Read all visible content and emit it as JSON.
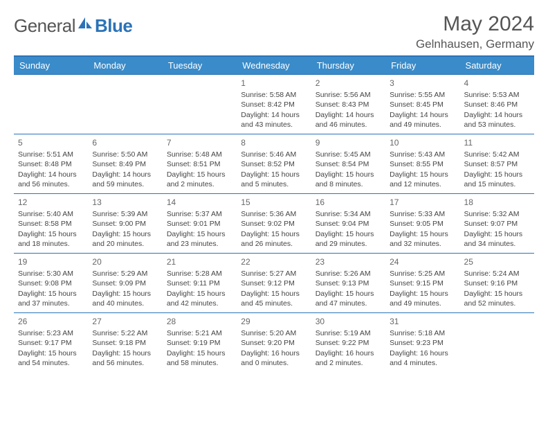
{
  "brand": {
    "left": "General",
    "right": "Blue"
  },
  "title": "May 2024",
  "location": "Gelnhausen, Germany",
  "colors": {
    "header_bg": "#3a8bc9",
    "header_text": "#ffffff",
    "rule": "#2b73b8",
    "body_text": "#444444",
    "title_text": "#555555",
    "background": "#ffffff"
  },
  "typography": {
    "title_fontsize": 30,
    "location_fontsize": 17,
    "dayhead_fontsize": 13,
    "cell_fontsize": 10.5,
    "logo_fontsize": 26
  },
  "day_headers": [
    "Sunday",
    "Monday",
    "Tuesday",
    "Wednesday",
    "Thursday",
    "Friday",
    "Saturday"
  ],
  "weeks": [
    [
      null,
      null,
      null,
      {
        "n": "1",
        "sunrise": "5:58 AM",
        "sunset": "8:42 PM",
        "daylight": "14 hours and 43 minutes."
      },
      {
        "n": "2",
        "sunrise": "5:56 AM",
        "sunset": "8:43 PM",
        "daylight": "14 hours and 46 minutes."
      },
      {
        "n": "3",
        "sunrise": "5:55 AM",
        "sunset": "8:45 PM",
        "daylight": "14 hours and 49 minutes."
      },
      {
        "n": "4",
        "sunrise": "5:53 AM",
        "sunset": "8:46 PM",
        "daylight": "14 hours and 53 minutes."
      }
    ],
    [
      {
        "n": "5",
        "sunrise": "5:51 AM",
        "sunset": "8:48 PM",
        "daylight": "14 hours and 56 minutes."
      },
      {
        "n": "6",
        "sunrise": "5:50 AM",
        "sunset": "8:49 PM",
        "daylight": "14 hours and 59 minutes."
      },
      {
        "n": "7",
        "sunrise": "5:48 AM",
        "sunset": "8:51 PM",
        "daylight": "15 hours and 2 minutes."
      },
      {
        "n": "8",
        "sunrise": "5:46 AM",
        "sunset": "8:52 PM",
        "daylight": "15 hours and 5 minutes."
      },
      {
        "n": "9",
        "sunrise": "5:45 AM",
        "sunset": "8:54 PM",
        "daylight": "15 hours and 8 minutes."
      },
      {
        "n": "10",
        "sunrise": "5:43 AM",
        "sunset": "8:55 PM",
        "daylight": "15 hours and 12 minutes."
      },
      {
        "n": "11",
        "sunrise": "5:42 AM",
        "sunset": "8:57 PM",
        "daylight": "15 hours and 15 minutes."
      }
    ],
    [
      {
        "n": "12",
        "sunrise": "5:40 AM",
        "sunset": "8:58 PM",
        "daylight": "15 hours and 18 minutes."
      },
      {
        "n": "13",
        "sunrise": "5:39 AM",
        "sunset": "9:00 PM",
        "daylight": "15 hours and 20 minutes."
      },
      {
        "n": "14",
        "sunrise": "5:37 AM",
        "sunset": "9:01 PM",
        "daylight": "15 hours and 23 minutes."
      },
      {
        "n": "15",
        "sunrise": "5:36 AM",
        "sunset": "9:02 PM",
        "daylight": "15 hours and 26 minutes."
      },
      {
        "n": "16",
        "sunrise": "5:34 AM",
        "sunset": "9:04 PM",
        "daylight": "15 hours and 29 minutes."
      },
      {
        "n": "17",
        "sunrise": "5:33 AM",
        "sunset": "9:05 PM",
        "daylight": "15 hours and 32 minutes."
      },
      {
        "n": "18",
        "sunrise": "5:32 AM",
        "sunset": "9:07 PM",
        "daylight": "15 hours and 34 minutes."
      }
    ],
    [
      {
        "n": "19",
        "sunrise": "5:30 AM",
        "sunset": "9:08 PM",
        "daylight": "15 hours and 37 minutes."
      },
      {
        "n": "20",
        "sunrise": "5:29 AM",
        "sunset": "9:09 PM",
        "daylight": "15 hours and 40 minutes."
      },
      {
        "n": "21",
        "sunrise": "5:28 AM",
        "sunset": "9:11 PM",
        "daylight": "15 hours and 42 minutes."
      },
      {
        "n": "22",
        "sunrise": "5:27 AM",
        "sunset": "9:12 PM",
        "daylight": "15 hours and 45 minutes."
      },
      {
        "n": "23",
        "sunrise": "5:26 AM",
        "sunset": "9:13 PM",
        "daylight": "15 hours and 47 minutes."
      },
      {
        "n": "24",
        "sunrise": "5:25 AM",
        "sunset": "9:15 PM",
        "daylight": "15 hours and 49 minutes."
      },
      {
        "n": "25",
        "sunrise": "5:24 AM",
        "sunset": "9:16 PM",
        "daylight": "15 hours and 52 minutes."
      }
    ],
    [
      {
        "n": "26",
        "sunrise": "5:23 AM",
        "sunset": "9:17 PM",
        "daylight": "15 hours and 54 minutes."
      },
      {
        "n": "27",
        "sunrise": "5:22 AM",
        "sunset": "9:18 PM",
        "daylight": "15 hours and 56 minutes."
      },
      {
        "n": "28",
        "sunrise": "5:21 AM",
        "sunset": "9:19 PM",
        "daylight": "15 hours and 58 minutes."
      },
      {
        "n": "29",
        "sunrise": "5:20 AM",
        "sunset": "9:20 PM",
        "daylight": "16 hours and 0 minutes."
      },
      {
        "n": "30",
        "sunrise": "5:19 AM",
        "sunset": "9:22 PM",
        "daylight": "16 hours and 2 minutes."
      },
      {
        "n": "31",
        "sunrise": "5:18 AM",
        "sunset": "9:23 PM",
        "daylight": "16 hours and 4 minutes."
      },
      null
    ]
  ],
  "labels": {
    "sunrise": "Sunrise: ",
    "sunset": "Sunset: ",
    "daylight": "Daylight: "
  }
}
